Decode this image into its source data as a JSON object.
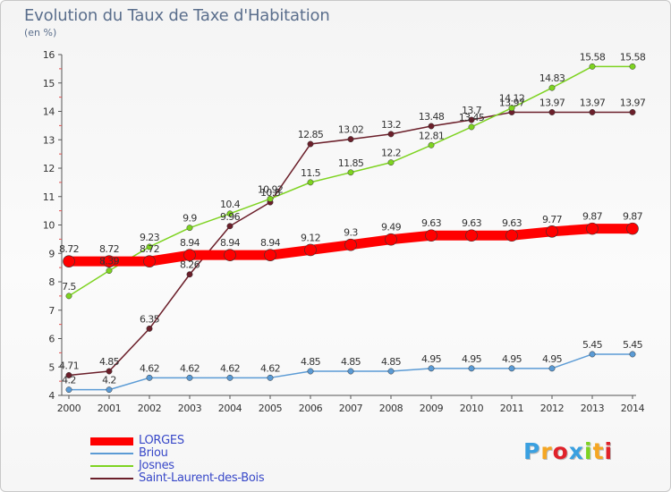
{
  "title": "Evolution du Taux de Taxe d'Habitation",
  "subtitle": "(en %)",
  "chart_data": {
    "type": "line",
    "title": "Evolution du Taux de Taxe d'Habitation",
    "ylabel": "(en %)",
    "xlabel": "",
    "x": [
      2000,
      2001,
      2002,
      2003,
      2004,
      2005,
      2006,
      2007,
      2008,
      2009,
      2010,
      2011,
      2012,
      2013,
      2014
    ],
    "ylim": [
      4,
      16
    ],
    "yticks": [
      4,
      5,
      6,
      7,
      8,
      9,
      10,
      11,
      12,
      13,
      14,
      15,
      16
    ],
    "grid": false,
    "legend_position": "bottom-left",
    "series": [
      {
        "name": "Saint-Laurent-des-Bois",
        "color": "#6b1f2a",
        "values": [
          4.71,
          4.85,
          6.35,
          8.26,
          9.96,
          10.8,
          12.85,
          13.02,
          13.2,
          13.48,
          13.7,
          13.97,
          13.97,
          13.97,
          13.97
        ],
        "labels": [
          "4.71",
          "4.85",
          "6.35",
          "8.26",
          "9.96",
          "10.8",
          "12.85",
          "13.02",
          "13.2",
          "13.48",
          "13.7",
          "13.97",
          "13.97",
          "13.97",
          "13.97"
        ]
      },
      {
        "name": "Josnes",
        "color": "#7ed321",
        "values": [
          7.5,
          8.39,
          9.23,
          9.9,
          10.4,
          10.92,
          11.5,
          11.85,
          12.2,
          12.81,
          13.45,
          14.12,
          14.83,
          15.58,
          15.58
        ],
        "labels": [
          "7.5",
          "8.39",
          "9.23",
          "9.9",
          "10.4",
          "10.92",
          "11.5",
          "11.85",
          "12.2",
          "12.81",
          "13.45",
          "14.12",
          "14.83",
          "15.58",
          "15.58"
        ]
      },
      {
        "name": "Briou",
        "color": "#5b9bd5",
        "values": [
          4.2,
          4.2,
          4.62,
          4.62,
          4.62,
          4.62,
          4.85,
          4.85,
          4.85,
          4.95,
          4.95,
          4.95,
          4.95,
          5.45,
          5.45
        ],
        "labels": [
          "4.2",
          "4.2",
          "4.62",
          "4.62",
          "4.62",
          "4.62",
          "4.85",
          "4.85",
          "4.85",
          "4.95",
          "4.95",
          "4.95",
          "4.95",
          "5.45",
          "5.45"
        ]
      },
      {
        "name": "LORGES",
        "color": "#ff0000",
        "values": [
          8.72,
          8.72,
          8.72,
          8.94,
          8.94,
          8.94,
          9.12,
          9.3,
          9.49,
          9.63,
          9.63,
          9.63,
          9.77,
          9.87,
          9.87
        ],
        "labels": [
          "8.72",
          "8.72",
          "8.72",
          "8.94",
          "8.94",
          "8.94",
          "9.12",
          "9.3",
          "9.49",
          "9.63",
          "9.63",
          "9.63",
          "9.77",
          "9.87",
          "9.87"
        ]
      }
    ]
  },
  "legend": {
    "items": [
      {
        "label": "LORGES",
        "color": "#ff0000",
        "thick": true
      },
      {
        "label": "Briou",
        "color": "#5b9bd5",
        "thick": false
      },
      {
        "label": "Josnes",
        "color": "#7ed321",
        "thick": false
      },
      {
        "label": "Saint-Laurent-des-Bois",
        "color": "#6b1f2a",
        "thick": false
      }
    ]
  },
  "logo": {
    "text": "Proxiti",
    "letter_colors": [
      "#3aa0e0",
      "#f5a623",
      "#e0222a",
      "#3aa0e0",
      "#7ed321",
      "#f5a623",
      "#e0222a"
    ]
  }
}
